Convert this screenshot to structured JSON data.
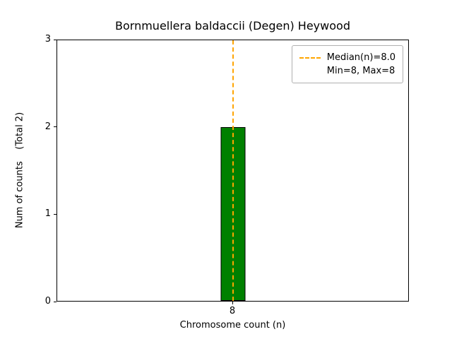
{
  "chart_data": {
    "type": "bar",
    "title": "Bornmuellera baldaccii (Degen) Heywood",
    "categories": [
      "8"
    ],
    "values": [
      2
    ],
    "xlabel": "Chromosome count (n)",
    "ylabel": "Num of counts    (Total 2)",
    "total_annotation": "(Total 2)",
    "ylim": [
      0,
      3
    ],
    "yticks": [
      0,
      1,
      2,
      3
    ],
    "bar_color": "#008000",
    "bar_edge_color": "#000000",
    "median_line": {
      "value": 8.0,
      "color": "#ffa500",
      "style": "dashed"
    },
    "legend": {
      "position": "upper right",
      "entries": [
        {
          "handle": "dashed-line",
          "color": "#ffa500",
          "label": "Median(n)=8.0"
        },
        {
          "handle": "none",
          "label": "Min=8, Max=8"
        }
      ]
    },
    "grid": false
  }
}
